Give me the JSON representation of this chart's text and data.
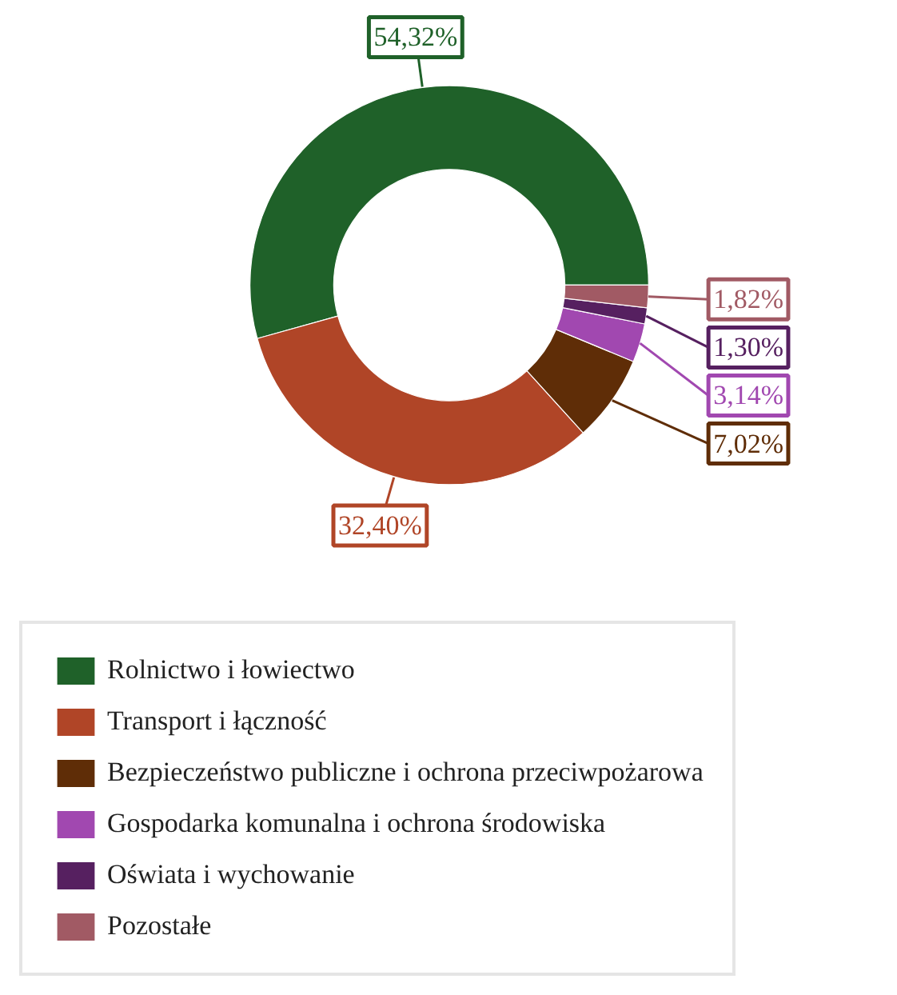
{
  "chart_data": {
    "type": "donut",
    "categories": [
      "Rolnictwo i łowiectwo",
      "Transport i łączność",
      "Bezpieczeństwo publiczne i ochrona przeciwpożarowa",
      "Gospodarka komunalna i ochrona środowiska",
      "Oświata i wychowanie",
      "Pozostałe"
    ],
    "values": [
      54.32,
      32.4,
      7.02,
      3.14,
      1.3,
      1.82
    ],
    "value_labels": [
      "54,32%",
      "32,40%",
      "7,02%",
      "3,14%",
      "1,30%",
      "1,82%"
    ],
    "colors": [
      "#1f6129",
      "#b04527",
      "#5f2d07",
      "#a148b0",
      "#562060",
      "#a15a64"
    ],
    "legend": "bottom"
  }
}
